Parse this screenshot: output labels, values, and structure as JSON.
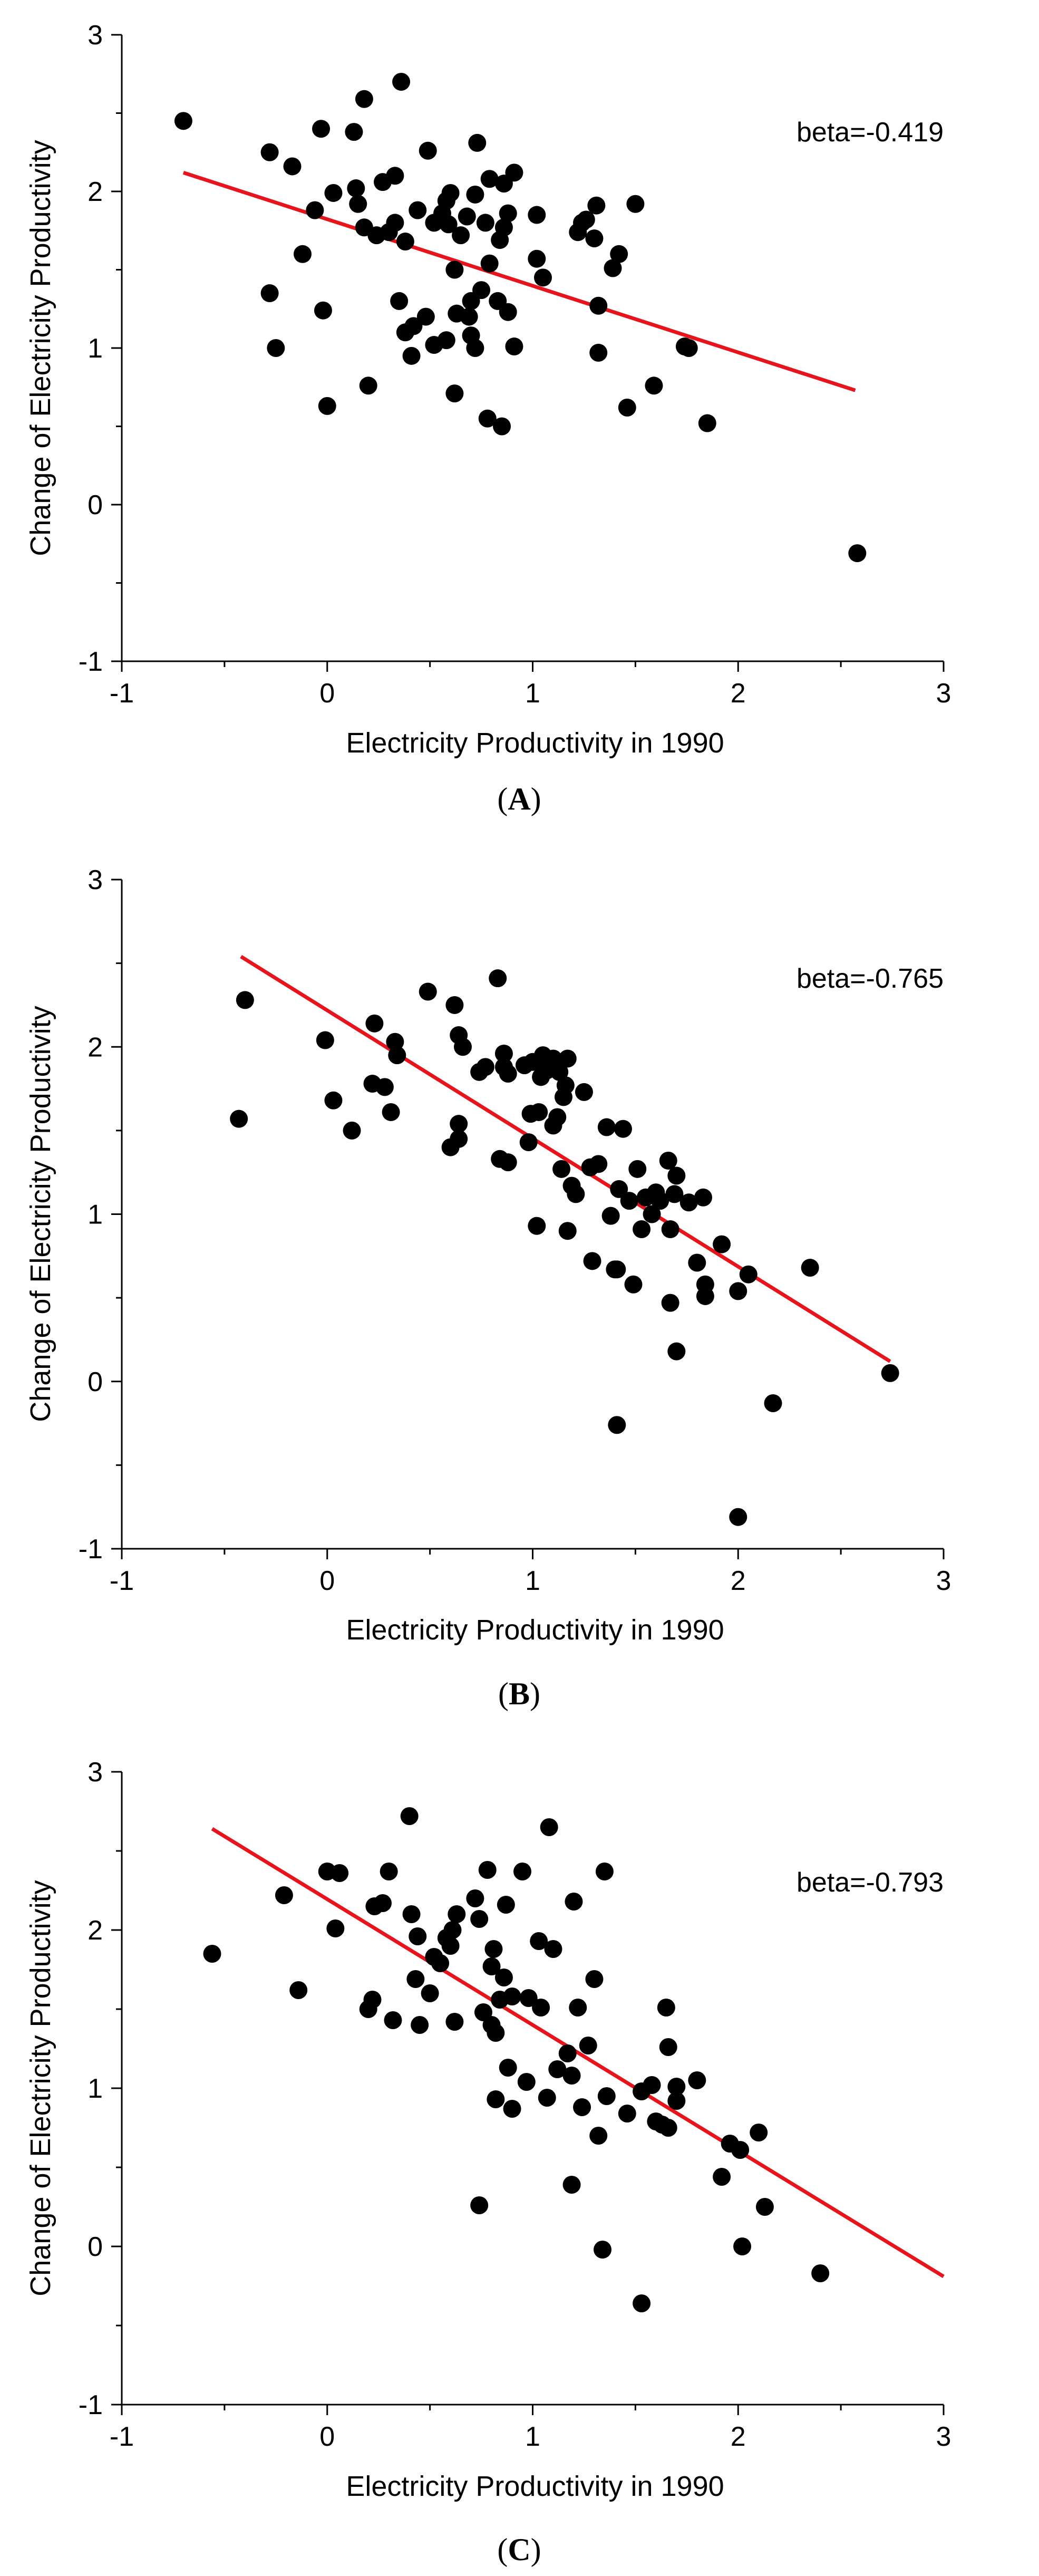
{
  "chart_data": [
    {
      "type": "scatter",
      "panel_label": "(A)",
      "panel_label_parts": {
        "open": "(",
        "letter": "A",
        "close": ")"
      },
      "title": "",
      "xlabel": "Electricity Productivity in 1990",
      "ylabel": "Change of Electricity Productivity",
      "xlim": [
        -1,
        3
      ],
      "ylim": [
        -1,
        3
      ],
      "xticks": [
        -1,
        0,
        1,
        2,
        3
      ],
      "yticks": [
        -1,
        0,
        1,
        2,
        3
      ],
      "xtick_labels": [
        "-1",
        "0",
        "1",
        "2",
        "3"
      ],
      "ytick_labels": [
        "-1",
        "0",
        "1",
        "2",
        "3"
      ],
      "grid": false,
      "annotation": "beta=-0.419",
      "colors": {
        "points": "#000000",
        "fit_line": "#e8141b"
      },
      "fit_line": {
        "x": [
          -0.7,
          2.57
        ],
        "y": [
          2.12,
          0.73
        ]
      },
      "points": [
        [
          -0.7,
          2.45
        ],
        [
          -0.28,
          2.25
        ],
        [
          -0.17,
          2.16
        ],
        [
          -0.03,
          2.4
        ],
        [
          0.13,
          2.38
        ],
        [
          0.18,
          2.59
        ],
        [
          0.36,
          2.7
        ],
        [
          0.73,
          2.31
        ],
        [
          0.49,
          2.26
        ],
        [
          0.33,
          2.1
        ],
        [
          0.27,
          2.06
        ],
        [
          0.03,
          1.99
        ],
        [
          0.14,
          2.02
        ],
        [
          0.15,
          1.92
        ],
        [
          -0.06,
          1.88
        ],
        [
          -0.12,
          1.6
        ],
        [
          0.18,
          1.77
        ],
        [
          0.24,
          1.72
        ],
        [
          0.3,
          1.74
        ],
        [
          0.33,
          1.8
        ],
        [
          0.38,
          1.68
        ],
        [
          0.44,
          1.88
        ],
        [
          0.52,
          1.8
        ],
        [
          0.56,
          1.86
        ],
        [
          0.58,
          1.94
        ],
        [
          0.6,
          1.99
        ],
        [
          0.68,
          1.84
        ],
        [
          0.72,
          1.98
        ],
        [
          0.77,
          1.8
        ],
        [
          0.79,
          2.08
        ],
        [
          0.86,
          2.05
        ],
        [
          0.91,
          2.12
        ],
        [
          0.86,
          1.77
        ],
        [
          0.88,
          1.86
        ],
        [
          0.84,
          1.69
        ],
        [
          0.59,
          1.79
        ],
        [
          0.65,
          1.72
        ],
        [
          0.79,
          1.54
        ],
        [
          0.62,
          1.5
        ],
        [
          0.75,
          1.37
        ],
        [
          0.7,
          1.3
        ],
        [
          0.83,
          1.3
        ],
        [
          0.88,
          1.23
        ],
        [
          1.02,
          1.85
        ],
        [
          1.02,
          1.57
        ],
        [
          1.05,
          1.45
        ],
        [
          1.22,
          1.74
        ],
        [
          1.24,
          1.8
        ],
        [
          1.26,
          1.82
        ],
        [
          1.3,
          1.7
        ],
        [
          1.31,
          1.91
        ],
        [
          1.39,
          1.51
        ],
        [
          1.42,
          1.6
        ],
        [
          1.5,
          1.92
        ],
        [
          1.32,
          1.27
        ],
        [
          1.32,
          0.97
        ],
        [
          1.46,
          0.62
        ],
        [
          1.59,
          0.76
        ],
        [
          1.74,
          1.01
        ],
        [
          1.76,
          1.0
        ],
        [
          1.85,
          0.52
        ],
        [
          -0.28,
          1.35
        ],
        [
          -0.25,
          1.0
        ],
        [
          -0.02,
          1.24
        ],
        [
          0.0,
          0.63
        ],
        [
          0.2,
          0.76
        ],
        [
          0.35,
          1.3
        ],
        [
          0.38,
          1.1
        ],
        [
          0.42,
          1.14
        ],
        [
          0.41,
          0.95
        ],
        [
          0.48,
          1.2
        ],
        [
          0.52,
          1.02
        ],
        [
          0.58,
          1.05
        ],
        [
          0.63,
          1.22
        ],
        [
          0.69,
          1.2
        ],
        [
          0.7,
          1.08
        ],
        [
          0.72,
          1.0
        ],
        [
          0.62,
          0.71
        ],
        [
          0.78,
          0.55
        ],
        [
          0.85,
          0.5
        ],
        [
          0.91,
          1.01
        ],
        [
          2.58,
          -0.31
        ]
      ]
    },
    {
      "type": "scatter",
      "panel_label": "(B)",
      "panel_label_parts": {
        "open": "(",
        "letter": "B",
        "close": ")"
      },
      "title": "",
      "xlabel": "Electricity Productivity in 1990",
      "ylabel": "Change of Electricity Productivity",
      "xlim": [
        -1,
        3
      ],
      "ylim": [
        -1,
        3
      ],
      "xticks": [
        -1,
        0,
        1,
        2,
        3
      ],
      "yticks": [
        -1,
        0,
        1,
        2,
        3
      ],
      "xtick_labels": [
        "-1",
        "0",
        "1",
        "2",
        "3"
      ],
      "ytick_labels": [
        "-1",
        "0",
        "1",
        "2",
        "3"
      ],
      "grid": false,
      "annotation": "beta=-0.765",
      "colors": {
        "points": "#000000",
        "fit_line": "#e8141b"
      },
      "fit_line": {
        "x": [
          -0.42,
          2.74
        ],
        "y": [
          2.54,
          0.12
        ]
      },
      "points": [
        [
          -0.4,
          2.28
        ],
        [
          -0.43,
          1.57
        ],
        [
          -0.01,
          2.04
        ],
        [
          0.03,
          1.68
        ],
        [
          0.12,
          1.5
        ],
        [
          0.23,
          2.14
        ],
        [
          0.22,
          1.78
        ],
        [
          0.28,
          1.76
        ],
        [
          0.31,
          1.61
        ],
        [
          0.33,
          2.03
        ],
        [
          0.34,
          1.95
        ],
        [
          0.49,
          2.33
        ],
        [
          0.62,
          2.25
        ],
        [
          0.64,
          2.07
        ],
        [
          0.66,
          2.0
        ],
        [
          0.6,
          1.4
        ],
        [
          0.64,
          1.45
        ],
        [
          0.64,
          1.54
        ],
        [
          0.74,
          1.85
        ],
        [
          0.77,
          1.88
        ],
        [
          0.83,
          2.41
        ],
        [
          0.86,
          1.96
        ],
        [
          0.86,
          1.88
        ],
        [
          0.88,
          1.84
        ],
        [
          0.84,
          1.33
        ],
        [
          0.88,
          1.31
        ],
        [
          0.96,
          1.89
        ],
        [
          1.0,
          1.91
        ],
        [
          1.05,
          1.95
        ],
        [
          1.04,
          1.82
        ],
        [
          1.07,
          1.86
        ],
        [
          1.1,
          1.93
        ],
        [
          1.13,
          1.85
        ],
        [
          1.16,
          1.77
        ],
        [
          1.15,
          1.7
        ],
        [
          1.17,
          1.93
        ],
        [
          0.99,
          1.6
        ],
        [
          0.98,
          1.43
        ],
        [
          1.03,
          1.61
        ],
        [
          1.1,
          1.53
        ],
        [
          1.12,
          1.58
        ],
        [
          1.14,
          1.27
        ],
        [
          1.21,
          1.12
        ],
        [
          1.19,
          1.17
        ],
        [
          1.25,
          1.73
        ],
        [
          1.28,
          1.28
        ],
        [
          1.32,
          1.3
        ],
        [
          1.36,
          1.52
        ],
        [
          1.44,
          1.51
        ],
        [
          1.51,
          1.27
        ],
        [
          1.42,
          1.15
        ],
        [
          1.47,
          1.08
        ],
        [
          1.55,
          1.1
        ],
        [
          1.6,
          1.13
        ],
        [
          1.62,
          1.08
        ],
        [
          1.66,
          1.32
        ],
        [
          1.7,
          1.23
        ],
        [
          1.69,
          1.12
        ],
        [
          1.76,
          1.07
        ],
        [
          1.83,
          1.1
        ],
        [
          1.02,
          0.93
        ],
        [
          1.17,
          0.9
        ],
        [
          1.29,
          0.72
        ],
        [
          1.38,
          0.99
        ],
        [
          1.4,
          0.67
        ],
        [
          1.41,
          0.67
        ],
        [
          1.49,
          0.58
        ],
        [
          1.53,
          0.91
        ],
        [
          1.67,
          0.91
        ],
        [
          1.67,
          0.47
        ],
        [
          1.7,
          0.18
        ],
        [
          1.8,
          0.71
        ],
        [
          1.84,
          0.51
        ],
        [
          1.84,
          0.58
        ],
        [
          1.92,
          0.82
        ],
        [
          2.0,
          0.54
        ],
        [
          2.05,
          0.64
        ],
        [
          2.35,
          0.68
        ],
        [
          1.41,
          -0.26
        ],
        [
          2.17,
          -0.13
        ],
        [
          2.0,
          -0.81
        ],
        [
          2.74,
          0.05
        ],
        [
          1.58,
          1.0
        ]
      ]
    },
    {
      "type": "scatter",
      "panel_label": "(C)",
      "panel_label_parts": {
        "open": "(",
        "letter": "C",
        "close": ")"
      },
      "title": "",
      "xlabel": "Electricity Productivity in 1990",
      "ylabel": "Change of Electricity Productivity",
      "xlim": [
        -1,
        3
      ],
      "ylim": [
        -1,
        3
      ],
      "xticks": [
        -1,
        0,
        1,
        2,
        3
      ],
      "yticks": [
        -1,
        0,
        1,
        2,
        3
      ],
      "xtick_labels": [
        "-1",
        "0",
        "1",
        "2",
        "3"
      ],
      "ytick_labels": [
        "-1",
        "0",
        "1",
        "2",
        "3"
      ],
      "grid": false,
      "annotation": "beta=-0.793",
      "colors": {
        "points": "#000000",
        "fit_line": "#e8141b"
      },
      "fit_line": {
        "x": [
          -0.56,
          3.0
        ],
        "y": [
          2.64,
          -0.19
        ]
      },
      "points": [
        [
          -0.56,
          1.85
        ],
        [
          -0.21,
          2.22
        ],
        [
          -0.14,
          1.62
        ],
        [
          0.0,
          2.37
        ],
        [
          0.04,
          2.01
        ],
        [
          0.06,
          2.36
        ],
        [
          0.2,
          1.5
        ],
        [
          0.22,
          1.56
        ],
        [
          0.23,
          2.15
        ],
        [
          0.27,
          2.17
        ],
        [
          0.3,
          2.37
        ],
        [
          0.32,
          1.43
        ],
        [
          0.4,
          2.72
        ],
        [
          0.41,
          2.1
        ],
        [
          0.44,
          1.96
        ],
        [
          0.43,
          1.69
        ],
        [
          0.45,
          1.4
        ],
        [
          0.5,
          1.6
        ],
        [
          0.52,
          1.83
        ],
        [
          0.55,
          1.79
        ],
        [
          0.58,
          1.95
        ],
        [
          0.6,
          1.9
        ],
        [
          0.61,
          2.0
        ],
        [
          0.63,
          2.1
        ],
        [
          0.62,
          1.42
        ],
        [
          0.72,
          2.2
        ],
        [
          0.74,
          2.07
        ],
        [
          0.76,
          1.48
        ],
        [
          0.78,
          2.38
        ],
        [
          0.8,
          1.77
        ],
        [
          0.81,
          1.88
        ],
        [
          0.8,
          1.4
        ],
        [
          0.82,
          1.35
        ],
        [
          0.84,
          1.56
        ],
        [
          0.86,
          1.7
        ],
        [
          0.87,
          2.16
        ],
        [
          0.9,
          1.58
        ],
        [
          0.88,
          1.13
        ],
        [
          0.82,
          0.93
        ],
        [
          0.9,
          0.87
        ],
        [
          0.95,
          2.37
        ],
        [
          0.97,
          1.04
        ],
        [
          0.98,
          1.57
        ],
        [
          1.03,
          1.93
        ],
        [
          1.04,
          1.51
        ],
        [
          1.08,
          2.65
        ],
        [
          1.1,
          1.88
        ],
        [
          1.07,
          0.94
        ],
        [
          1.12,
          1.12
        ],
        [
          1.17,
          1.22
        ],
        [
          1.2,
          2.18
        ],
        [
          1.19,
          1.08
        ],
        [
          1.22,
          1.51
        ],
        [
          1.24,
          0.88
        ],
        [
          1.27,
          1.27
        ],
        [
          1.3,
          1.69
        ],
        [
          1.32,
          0.7
        ],
        [
          1.35,
          2.37
        ],
        [
          1.36,
          0.95
        ],
        [
          1.46,
          0.84
        ],
        [
          1.53,
          0.98
        ],
        [
          1.58,
          1.02
        ],
        [
          1.6,
          0.79
        ],
        [
          1.63,
          0.77
        ],
        [
          1.65,
          1.51
        ],
        [
          1.66,
          1.26
        ],
        [
          1.66,
          0.75
        ],
        [
          1.7,
          1.01
        ],
        [
          1.7,
          0.92
        ],
        [
          1.8,
          1.05
        ],
        [
          0.74,
          0.26
        ],
        [
          1.19,
          0.39
        ],
        [
          1.34,
          -0.02
        ],
        [
          1.53,
          -0.36
        ],
        [
          1.92,
          0.44
        ],
        [
          1.96,
          0.65
        ],
        [
          2.01,
          0.61
        ],
        [
          2.02,
          0.0
        ],
        [
          2.1,
          0.72
        ],
        [
          2.13,
          0.25
        ],
        [
          2.4,
          -0.17
        ]
      ]
    }
  ]
}
